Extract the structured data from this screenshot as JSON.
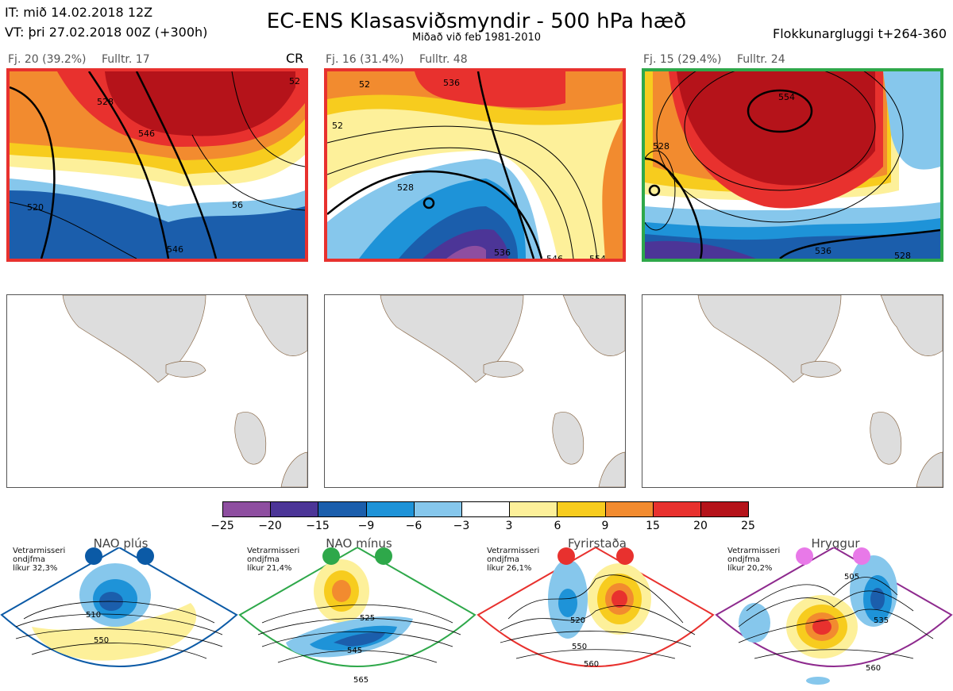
{
  "header": {
    "it_line": "IT: mið 14.02.2018 12Z",
    "vt_line": "VT: þri 27.02.2018 00Z  (+300h)",
    "title": "EC-ENS Klasasviðsmyndir - 500 hPa hæð",
    "subtitle": "Miðað við feb 1981-2010",
    "window": "Flokkunargluggi t+264-360"
  },
  "panels": [
    {
      "label": "Fj. 20 (39.2%)",
      "rep": "Fulltr. 17",
      "tag": "CR",
      "frame_color": "#e8312e",
      "contours": [
        "528",
        "520",
        "546",
        "546",
        "52",
        "56"
      ]
    },
    {
      "label": "Fj. 16 (31.4%)",
      "rep": "Fulltr. 48",
      "tag": "",
      "frame_color": "#e8312e",
      "contours": [
        "52",
        "528",
        "536",
        "546",
        "554",
        "536",
        "52"
      ]
    },
    {
      "label": "Fj. 15 (29.4%)",
      "rep": "Fulltr. 24",
      "tag": "",
      "frame_color": "#2ea84a",
      "contours": [
        "528",
        "554",
        "536",
        "528"
      ]
    }
  ],
  "colorbar": {
    "colors": [
      "#8e4ea0",
      "#4c3597",
      "#1b5eac",
      "#1e93d8",
      "#86c7ec",
      "#ffffff",
      "#fdf09a",
      "#f7cc1e",
      "#f28b2f",
      "#e8312e",
      "#b5131a"
    ],
    "ticks": [
      "−25",
      "−20",
      "−15",
      "−9",
      "−6",
      "−3",
      "3",
      "6",
      "9",
      "15",
      "20",
      "25"
    ]
  },
  "regimes": [
    {
      "name": "NAO plús",
      "line1": "Vetrarmisseri",
      "line2": "ondjfma",
      "line3": "líkur 32,3%",
      "color": "#0b5aa6",
      "contours": [
        "510",
        "550"
      ]
    },
    {
      "name": "NAO mínus",
      "line1": "Vetrarmisseri",
      "line2": "ondjfma",
      "line3": "líkur 21,4%",
      "color": "#2ea84a",
      "contours": [
        "525",
        "545",
        "565"
      ]
    },
    {
      "name": "Fyrirstaða",
      "line1": "Vetrarmisseri",
      "line2": "ondjfma",
      "line3": "líkur 26,1%",
      "color": "#e8312e",
      "contours": [
        "520",
        "550",
        "560"
      ]
    },
    {
      "name": "Hryggur",
      "line1": "Vetrarmisseri",
      "line2": "ondjfma",
      "line3": "líkur 20,2%",
      "color": "#e879e8",
      "contours": [
        "505",
        "535",
        "560"
      ]
    }
  ]
}
